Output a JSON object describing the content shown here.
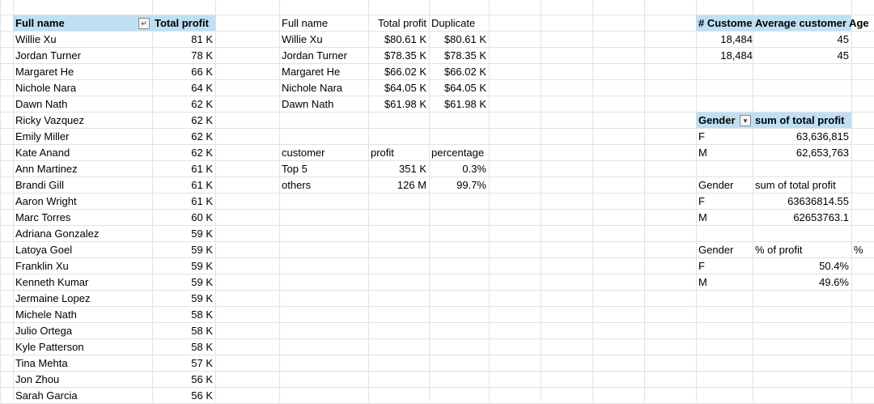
{
  "top_table": {
    "header_name": "Full name",
    "header_profit": "Total profit",
    "sort_icon": "sort-descending-filter-icon",
    "rows": [
      {
        "name": "Willie Xu",
        "profit": "81 K"
      },
      {
        "name": "Jordan Turner",
        "profit": "78 K"
      },
      {
        "name": "Margaret He",
        "profit": "66 K"
      },
      {
        "name": "Nichole Nara",
        "profit": "64 K"
      },
      {
        "name": "Dawn Nath",
        "profit": "62 K"
      },
      {
        "name": "Ricky Vazquez",
        "profit": "62 K"
      },
      {
        "name": "Emily Miller",
        "profit": "62 K"
      },
      {
        "name": "Kate Anand",
        "profit": "62 K"
      },
      {
        "name": "Ann Martinez",
        "profit": "61 K"
      },
      {
        "name": "Brandi Gill",
        "profit": "61 K"
      },
      {
        "name": "Aaron Wright",
        "profit": "61 K"
      },
      {
        "name": "Marc Torres",
        "profit": "60 K"
      },
      {
        "name": "Adriana Gonzalez",
        "profit": "59 K"
      },
      {
        "name": "Latoya Goel",
        "profit": "59 K"
      },
      {
        "name": "Franklin Xu",
        "profit": "59 K"
      },
      {
        "name": "Kenneth Kumar",
        "profit": "59 K"
      },
      {
        "name": "Jermaine Lopez",
        "profit": "59 K"
      },
      {
        "name": "Michele Nath",
        "profit": "58 K"
      },
      {
        "name": "Julio Ortega",
        "profit": "58 K"
      },
      {
        "name": "Kyle Patterson",
        "profit": "58 K"
      },
      {
        "name": "Tina Mehta",
        "profit": "57 K"
      },
      {
        "name": "Jon Zhou",
        "profit": "56 K"
      },
      {
        "name": "Sarah Garcia",
        "profit": "56 K"
      }
    ]
  },
  "top5_table": {
    "header_name": "Full name",
    "header_profit": "Total profit",
    "header_dup": "Duplicate",
    "rows": [
      {
        "name": "Willie Xu",
        "profit": "$80.61 K",
        "dup": "$80.61 K"
      },
      {
        "name": "Jordan Turner",
        "profit": "$78.35 K",
        "dup": "$78.35 K"
      },
      {
        "name": "Margaret He",
        "profit": "$66.02 K",
        "dup": "$66.02 K"
      },
      {
        "name": "Nichole Nara",
        "profit": "$64.05 K",
        "dup": "$64.05 K"
      },
      {
        "name": "Dawn Nath",
        "profit": "$61.98 K",
        "dup": "$61.98 K"
      }
    ]
  },
  "share_table": {
    "header_customer": "customer",
    "header_profit": "profit",
    "header_percentage": "percentage",
    "rows": [
      {
        "customer": "Top 5",
        "profit": "351 K",
        "percentage": "0.3%"
      },
      {
        "customer": "others",
        "profit": "126 M",
        "percentage": "99.7%"
      }
    ]
  },
  "customer_summary": {
    "header_count": "# Custome",
    "header_avg": "Average customer Age",
    "rows": [
      {
        "count": "18,484",
        "avg": "45"
      },
      {
        "count": "18,484",
        "avg": "45"
      }
    ]
  },
  "gender_pivot": {
    "header_gender": "Gender",
    "header_sum": "sum of total profit",
    "filter_icon": "dropdown-filter-icon",
    "rows": [
      {
        "gender": "F",
        "sum": "63,636,815"
      },
      {
        "gender": "M",
        "sum": "62,653,763"
      }
    ]
  },
  "gender_raw": {
    "header_gender": "Gender",
    "header_sum": "sum of total profit",
    "rows": [
      {
        "gender": "F",
        "sum": "63636814.55"
      },
      {
        "gender": "M",
        "sum": "62653763.1"
      }
    ]
  },
  "gender_pct": {
    "header_gender": "Gender",
    "header_pct": "% of profit",
    "extra": "%",
    "rows": [
      {
        "gender": "F",
        "pct": "50.4%"
      },
      {
        "gender": "M",
        "pct": "49.6%"
      }
    ]
  },
  "colors": {
    "header_fill": "#bfe0f3",
    "gridline": "#e2e2e2"
  }
}
